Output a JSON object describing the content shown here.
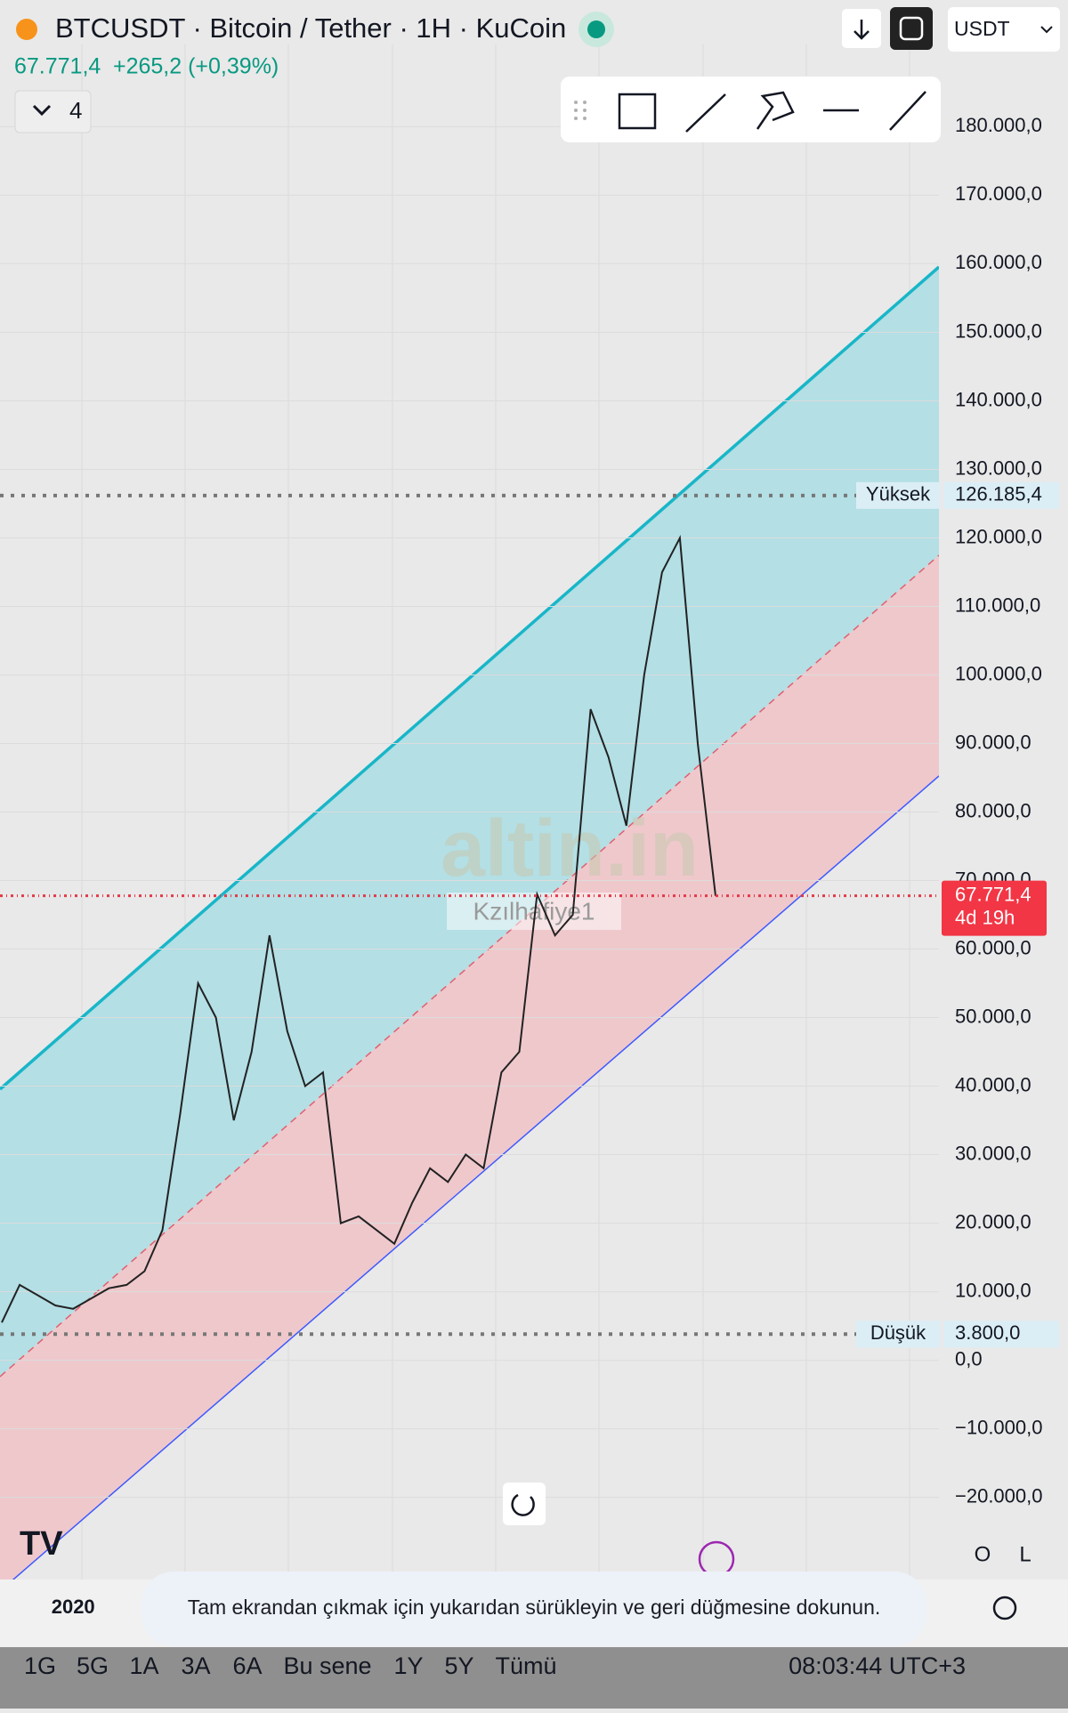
{
  "header": {
    "symbol": "BTCUSDT · Bitcoin / Tether · 1H · KuCoin",
    "change": "+265,2 (+0,39%)",
    "currency": "USDT",
    "indicators": "4"
  },
  "chart_data": {
    "type": "line",
    "watermark": "altin.in",
    "author": "Kzılhafiye1",
    "categories": [
      null,
      null,
      null,
      null,
      "2020",
      null,
      null,
      null,
      null,
      null,
      null,
      null,
      null,
      null,
      null,
      null,
      null,
      null,
      null,
      null,
      null,
      null,
      null,
      null,
      null,
      null,
      null,
      null,
      null,
      null,
      null,
      null,
      null,
      null,
      null,
      null,
      null,
      null,
      null,
      null,
      null
    ],
    "series": [
      {
        "name": "BTCUSDT",
        "color": "#222222",
        "values": [
          5500,
          11000,
          9500,
          8000,
          7500,
          9000,
          10500,
          11000,
          13000,
          19000,
          36000,
          55000,
          50000,
          35000,
          45000,
          62000,
          48000,
          40000,
          42000,
          20000,
          21000,
          19000,
          17000,
          23000,
          28000,
          26000,
          30000,
          28000,
          42000,
          45000,
          68000,
          62000,
          65000,
          95000,
          88000,
          78000,
          100000,
          115000,
          120000,
          90000,
          67771.4
        ]
      }
    ],
    "ylim": [
      -32000,
      192000
    ],
    "yticks": [
      {
        "value": -20000,
        "label": "−20.000,0"
      },
      {
        "value": -10000,
        "label": "−10.000,0"
      },
      {
        "value": 0,
        "label": "0,0"
      },
      {
        "value": 10000,
        "label": "10.000,0"
      },
      {
        "value": 20000,
        "label": "20.000,0"
      },
      {
        "value": 30000,
        "label": "30.000,0"
      },
      {
        "value": 40000,
        "label": "40.000,0"
      },
      {
        "value": 50000,
        "label": "50.000,0"
      },
      {
        "value": 60000,
        "label": "60.000,0"
      },
      {
        "value": 70000,
        "label": "70.000,0"
      },
      {
        "value": 80000,
        "label": "80.000,0"
      },
      {
        "value": 90000,
        "label": "90.000,0"
      },
      {
        "value": 100000,
        "label": "100.000,0"
      },
      {
        "value": 110000,
        "label": "110.000,0"
      },
      {
        "value": 120000,
        "label": "120.000,0"
      },
      {
        "value": 130000,
        "label": "130.000,0"
      },
      {
        "value": 140000,
        "label": "140.000,0"
      },
      {
        "value": 150000,
        "label": "150.000,0"
      },
      {
        "value": 160000,
        "label": "160.000,0"
      },
      {
        "value": 170000,
        "label": "170.000,0"
      },
      {
        "value": 180000,
        "label": "180.000,0"
      }
    ],
    "grid": true,
    "high": {
      "name": "Yüksek",
      "value": 126185.4,
      "label": "126.185,4"
    },
    "low": {
      "name": "Düşük",
      "value": 3800,
      "label": "3.800,0"
    },
    "price_line": {
      "value": 67771.4,
      "label": "67.771,4",
      "countdown": "4d 19h"
    }
  },
  "scale_buttons": [
    "O",
    "L"
  ],
  "timeframes": [
    "1G",
    "5G",
    "1A",
    "3A",
    "6A",
    "Bu sene",
    "1Y",
    "5Y",
    "Tümü"
  ],
  "clock": "08:03:44 UTC+3",
  "toast": "Tam ekrandan çıkmak için yukarıdan sürükleyin ve geri düğmesine dokunun."
}
